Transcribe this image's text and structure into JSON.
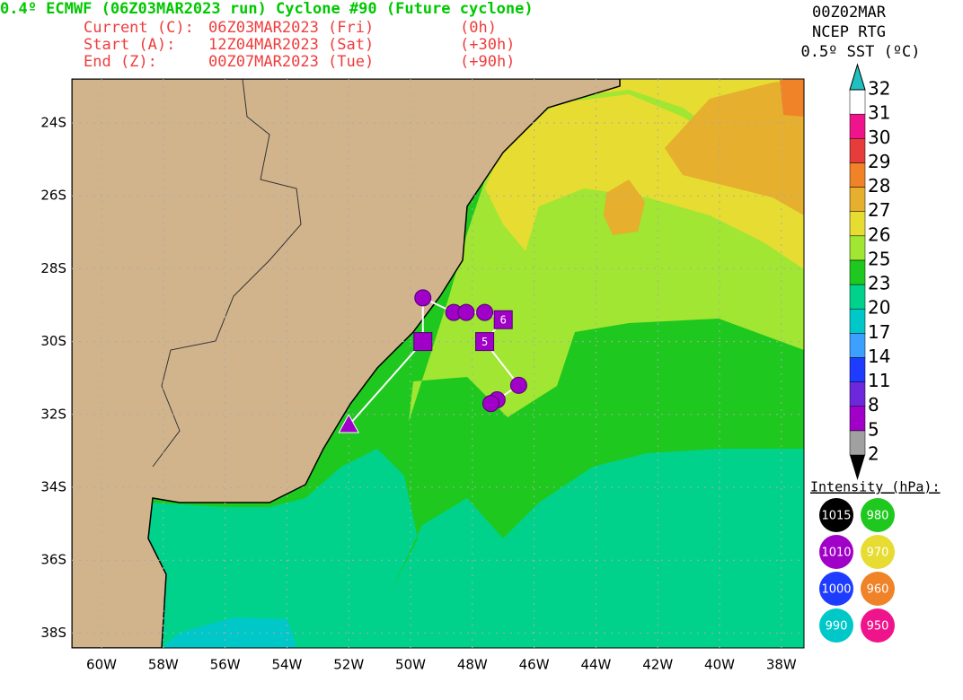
{
  "header": {
    "title": "0.4º ECMWF (06Z03MAR2023 run) Cyclone #90 (Future cyclone)",
    "rows": [
      [
        "Current (C):",
        "06Z03MAR2023 (Fri)",
        "(0h)"
      ],
      [
        "Start (A):",
        "12Z04MAR2023 (Sat)",
        "(+30h)"
      ],
      [
        "End (Z):",
        "00Z07MAR2023 (Tue)",
        "(+90h)"
      ]
    ]
  },
  "map": {
    "xticks": [
      {
        "value": -60,
        "label": "60W"
      },
      {
        "value": -58,
        "label": "58W"
      },
      {
        "value": -56,
        "label": "56W"
      },
      {
        "value": -54,
        "label": "54W"
      },
      {
        "value": -52,
        "label": "52W"
      },
      {
        "value": -50,
        "label": "50W"
      },
      {
        "value": -48,
        "label": "48W"
      },
      {
        "value": -46,
        "label": "46W"
      },
      {
        "value": -44,
        "label": "44W"
      },
      {
        "value": -42,
        "label": "42W"
      },
      {
        "value": -40,
        "label": "40W"
      },
      {
        "value": -38,
        "label": "38W"
      }
    ],
    "yticks": [
      {
        "value": -24,
        "label": "24S"
      },
      {
        "value": -26,
        "label": "26S"
      },
      {
        "value": -28,
        "label": "28S"
      },
      {
        "value": -30,
        "label": "30S"
      },
      {
        "value": -32,
        "label": "32S"
      },
      {
        "value": -34,
        "label": "34S"
      },
      {
        "value": -36,
        "label": "36S"
      },
      {
        "value": -38,
        "label": "38S"
      }
    ],
    "track": [
      {
        "lon": -52.0,
        "lat": -32.3,
        "shape": "triangle"
      },
      {
        "lon": -49.6,
        "lat": -30.0,
        "shape": "square"
      },
      {
        "lon": -49.6,
        "lat": -28.8,
        "shape": "circle"
      },
      {
        "lon": -48.6,
        "lat": -29.2,
        "shape": "circle"
      },
      {
        "lon": -48.2,
        "lat": -29.2,
        "shape": "circle"
      },
      {
        "lon": -47.6,
        "lat": -29.2,
        "shape": "circle"
      },
      {
        "lon": -47.0,
        "lat": -29.4,
        "shape": "square",
        "label": "6"
      },
      {
        "lon": -47.6,
        "lat": -30.0,
        "shape": "square",
        "label": "5"
      },
      {
        "lon": -46.5,
        "lat": -31.2,
        "shape": "circle"
      },
      {
        "lon": -47.2,
        "lat": -31.6,
        "shape": "circle"
      },
      {
        "lon": -47.4,
        "lat": -31.7,
        "shape": "circle"
      }
    ]
  },
  "colorbar": {
    "lines": [
      "00Z02MAR",
      "NCEP RTG",
      "0.5º SST (ºC)"
    ],
    "levels": [
      2,
      5,
      8,
      11,
      14,
      17,
      20,
      23,
      25,
      26,
      27,
      28,
      29,
      30,
      31,
      32
    ],
    "colors": [
      "#a0a0a0",
      "#a000c8",
      "#6e28dc",
      "#1e3cff",
      "#3ca0ff",
      "#00c8c8",
      "#00d28c",
      "#1ec81e",
      "#a0e632",
      "#e6dc32",
      "#e6af2d",
      "#f08228",
      "#e63c3c",
      "#f0148c",
      "#ffffff"
    ]
  },
  "intensity": {
    "title": "Intensity (hPa):",
    "items": [
      {
        "label": "1015",
        "color": "#000000"
      },
      {
        "label": "980",
        "color": "#1ec81e"
      },
      {
        "label": "1010",
        "color": "#a000c8"
      },
      {
        "label": "970",
        "color": "#e6dc32"
      },
      {
        "label": "1000",
        "color": "#1e3cff"
      },
      {
        "label": "960",
        "color": "#f08228"
      },
      {
        "label": "990",
        "color": "#00c8c8"
      },
      {
        "label": "950",
        "color": "#f0148c"
      }
    ]
  }
}
